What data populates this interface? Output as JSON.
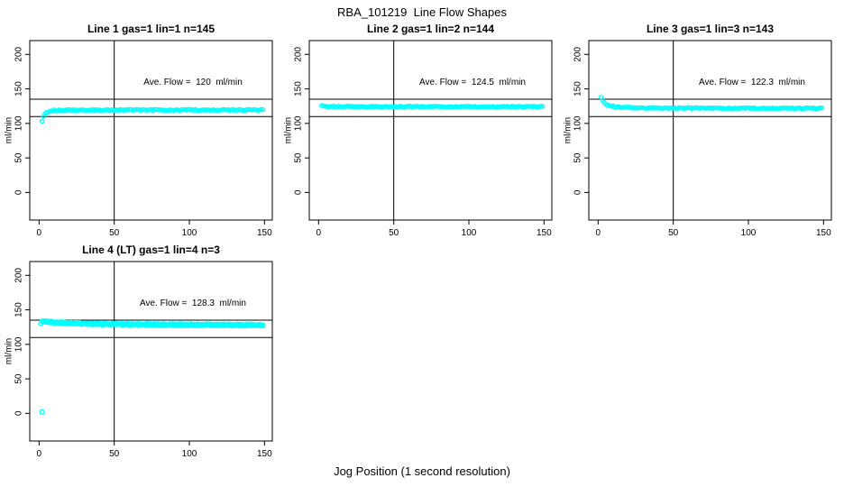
{
  "page": {
    "title": "RBA_101219  Line Flow Shapes",
    "x_axis_label": "Jog Position (1 second resolution)"
  },
  "colors": {
    "point": "#00FFFF",
    "axis": "#000000",
    "text": "#000000",
    "background": "#FFFFFF"
  },
  "chart_data": [
    {
      "type": "scatter",
      "title": "Line 1 gas=1 lin=1 n=145",
      "ylabel": "ml/min",
      "annotation": "Ave. Flow =  120  ml/min",
      "ave_flow_ml_min": 120,
      "n": 145,
      "xlim": [
        -6.2,
        155.2
      ],
      "ylim": [
        -40,
        220
      ],
      "xticks": [
        0,
        50,
        100,
        150
      ],
      "yticks": [
        0,
        50,
        100,
        150,
        200
      ],
      "ref_lines": {
        "h": [
          110,
          135
        ],
        "v": [
          50
        ]
      },
      "series": [
        {
          "x_start": 2,
          "x_end": 149,
          "spread": 0.9,
          "keypoints": [
            [
              2,
              103
            ],
            [
              3,
              110.5
            ],
            [
              4,
              114.5
            ],
            [
              5,
              116.5
            ],
            [
              7,
              118
            ],
            [
              10,
              118.8
            ],
            [
              15,
              119.2
            ],
            [
              30,
              119.5
            ],
            [
              60,
              119.6
            ],
            [
              100,
              119.6
            ],
            [
              149,
              119.6
            ]
          ]
        }
      ],
      "outliers": []
    },
    {
      "type": "scatter",
      "title": "Line 2 gas=1 lin=2 n=144",
      "ylabel": "ml/min",
      "annotation": "Ave. Flow =  124.5  ml/min",
      "ave_flow_ml_min": 124.5,
      "n": 144,
      "xlim": [
        -6.2,
        155.2
      ],
      "ylim": [
        -40,
        220
      ],
      "xticks": [
        0,
        50,
        100,
        150
      ],
      "yticks": [
        0,
        50,
        100,
        150,
        200
      ],
      "ref_lines": {
        "h": [
          110,
          135
        ],
        "v": [
          50
        ]
      },
      "series": [
        {
          "x_start": 2,
          "x_end": 149,
          "spread": 0.8,
          "keypoints": [
            [
              2,
              126
            ],
            [
              3,
              125.3
            ],
            [
              6,
              124.8
            ],
            [
              15,
              124.5
            ],
            [
              40,
              124.4
            ],
            [
              100,
              124.3
            ],
            [
              149,
              124.3
            ]
          ]
        }
      ],
      "outliers": []
    },
    {
      "type": "scatter",
      "title": "Line 3 gas=1 lin=3 n=143",
      "ylabel": "ml/min",
      "annotation": "Ave. Flow =  122.3  ml/min",
      "ave_flow_ml_min": 122.3,
      "n": 143,
      "xlim": [
        -6.2,
        155.2
      ],
      "ylim": [
        -40,
        220
      ],
      "xticks": [
        0,
        50,
        100,
        150
      ],
      "yticks": [
        0,
        50,
        100,
        150,
        200
      ],
      "ref_lines": {
        "h": [
          110,
          135
        ],
        "v": [
          50
        ]
      },
      "series": [
        {
          "x_start": 2,
          "x_end": 149,
          "spread": 0.8,
          "keypoints": [
            [
              2,
              138
            ],
            [
              3,
              133.5
            ],
            [
              4,
              130.5
            ],
            [
              5,
              128.5
            ],
            [
              7,
              126.3
            ],
            [
              10,
              124.7
            ],
            [
              15,
              123.5
            ],
            [
              25,
              122.7
            ],
            [
              50,
              122.3
            ],
            [
              100,
              122.1
            ],
            [
              149,
              122
            ]
          ]
        }
      ],
      "outliers": []
    },
    {
      "type": "scatter",
      "title": "Line 4 (LT) gas=1 lin=4 n=3",
      "ylabel": "ml/min",
      "annotation": "Ave. Flow =  128.3  ml/min",
      "ave_flow_ml_min": 128.3,
      "n": 3,
      "xlim": [
        -6.2,
        155.2
      ],
      "ylim": [
        -40,
        220
      ],
      "xticks": [
        0,
        50,
        100,
        150
      ],
      "yticks": [
        0,
        50,
        100,
        150,
        200
      ],
      "ref_lines": {
        "h": [
          110,
          135
        ],
        "v": [
          50
        ]
      },
      "series": [
        {
          "x_start": 1,
          "x_end": 149,
          "spread": 0.7,
          "keypoints": [
            [
              1,
              130.5
            ],
            [
              2,
              133.5
            ],
            [
              4,
              133
            ],
            [
              8,
              132.2
            ],
            [
              15,
              131.3
            ],
            [
              30,
              130.2
            ],
            [
              60,
              129.2
            ],
            [
              100,
              128.5
            ],
            [
              149,
              128
            ]
          ]
        },
        {
          "x_start": 1,
          "x_end": 149,
          "spread": 0.7,
          "keypoints": [
            [
              1,
              129.5
            ],
            [
              2,
              132.5
            ],
            [
              4,
              132
            ],
            [
              8,
              131.2
            ],
            [
              15,
              130.3
            ],
            [
              30,
              129.2
            ],
            [
              60,
              128.2
            ],
            [
              100,
              127.5
            ],
            [
              149,
              127
            ]
          ]
        },
        {
          "x_start": 2,
          "x_end": 149,
          "spread": 0.7,
          "keypoints": [
            [
              2,
              134
            ],
            [
              4,
              133.8
            ],
            [
              8,
              133
            ],
            [
              15,
              132.1
            ],
            [
              30,
              131
            ],
            [
              60,
              130
            ],
            [
              100,
              129.3
            ],
            [
              149,
              128.8
            ]
          ]
        }
      ],
      "outliers": [
        [
          2,
          2
        ]
      ]
    }
  ]
}
